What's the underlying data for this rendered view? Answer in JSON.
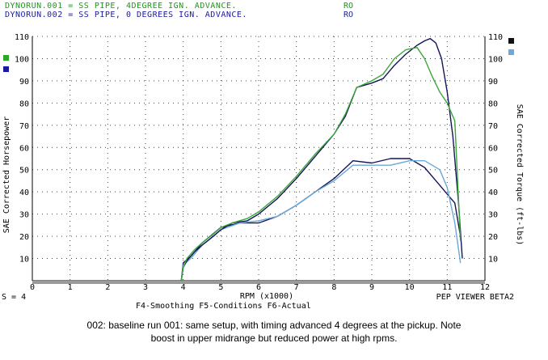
{
  "header": {
    "run1": {
      "label": "DYNORUN.001 = SS PIPE, 4DEGREE IGN. ADVANCE.",
      "tag": "RO",
      "color": "#1a9a1a"
    },
    "run2": {
      "label": "DYNORUN.002 = SS PIPE, 0 DEGREES IGN. ADVANCE.",
      "tag": "RO",
      "color": "#1a1aa0"
    }
  },
  "footer": {
    "smoothing": "S = 4",
    "keys": "F4-Smoothing  F5-Conditions  F6-Actual",
    "viewer": "PEP VIEWER BETA2"
  },
  "caption": {
    "line1": "002:  baseline run      001: same setup, with timing advanced 4 degrees at the pickup.  Note",
    "line2": "boost in upper midrange but reduced power at high rpms."
  },
  "colors": {
    "run1_hp": "#3aa83a",
    "run1_tq": "#6aa8d8",
    "run2_hp": "#14145a",
    "run2_tq": "#14145a",
    "left_swatch_top": "#2aa82a",
    "left_swatch_bottom": "#1a1aa0",
    "right_swatch_top": "#111111",
    "right_swatch_bottom": "#6aaae0"
  },
  "chart_data": {
    "type": "line",
    "xlabel": "RPM (x1000)",
    "ylabel": "SAE Corrected Horsepower",
    "y2label": "SAE Corrected Torque (ft-lbs)",
    "xlim": [
      0,
      12
    ],
    "ylim": [
      0,
      110
    ],
    "x_ticks": [
      0,
      1,
      2,
      3,
      4,
      5,
      6,
      7,
      8,
      9,
      10,
      11,
      12
    ],
    "y_ticks": [
      10,
      20,
      30,
      40,
      50,
      60,
      70,
      80,
      90,
      100,
      110
    ],
    "grid": true,
    "series": [
      {
        "name": "DYNORUN.001",
        "measure": "hp",
        "x": [
          3.95,
          4.0,
          4.1,
          4.3,
          4.5,
          4.8,
          5.0,
          5.3,
          5.7,
          6.0,
          6.5,
          7.0,
          7.5,
          8.0,
          8.3,
          8.6,
          9.0,
          9.3,
          9.6,
          9.9,
          10.2,
          10.4,
          10.6,
          10.8,
          11.0,
          11.2,
          11.35
        ],
        "y": [
          0,
          6,
          10,
          14,
          17,
          21,
          24,
          26,
          28,
          31,
          38,
          47,
          57,
          66,
          75,
          87,
          90,
          93,
          100,
          104,
          105,
          100,
          92,
          85,
          80,
          72,
          18
        ]
      },
      {
        "name": "DYNORUN.002",
        "measure": "hp",
        "x": [
          3.95,
          4.0,
          4.1,
          4.3,
          4.5,
          4.8,
          5.0,
          5.3,
          5.7,
          6.0,
          6.5,
          7.0,
          7.5,
          8.0,
          8.3,
          8.6,
          9.0,
          9.3,
          9.6,
          9.9,
          10.2,
          10.4,
          10.55,
          10.7,
          10.85,
          11.0,
          11.15,
          11.3,
          11.4
        ],
        "y": [
          0,
          6,
          9,
          13,
          16,
          20,
          23,
          26,
          27,
          30,
          37,
          46,
          56,
          66,
          74,
          87,
          89,
          91,
          97,
          102,
          106,
          108,
          109,
          107,
          100,
          85,
          65,
          35,
          10
        ]
      },
      {
        "name": "DYNORUN.001",
        "measure": "torque",
        "x": [
          3.95,
          4.0,
          4.2,
          4.5,
          5.0,
          5.5,
          6.0,
          6.5,
          7.0,
          7.5,
          8.0,
          8.5,
          9.0,
          9.5,
          10.0,
          10.4,
          10.8,
          11.0,
          11.2,
          11.35
        ],
        "y": [
          0,
          7,
          10,
          16,
          23,
          26,
          27,
          29,
          34,
          40,
          45,
          52,
          52,
          52,
          54,
          54,
          50,
          42,
          26,
          8
        ]
      },
      {
        "name": "DYNORUN.002",
        "measure": "torque",
        "x": [
          3.95,
          4.0,
          4.2,
          4.5,
          5.0,
          5.5,
          6.0,
          6.5,
          7.0,
          7.5,
          8.0,
          8.5,
          9.0,
          9.5,
          10.0,
          10.4,
          10.8,
          11.0,
          11.2,
          11.35
        ],
        "y": [
          0,
          8,
          11,
          17,
          24,
          26,
          26,
          29,
          34,
          40,
          46,
          54,
          53,
          55,
          55,
          51,
          43,
          39,
          35,
          20
        ]
      }
    ]
  }
}
